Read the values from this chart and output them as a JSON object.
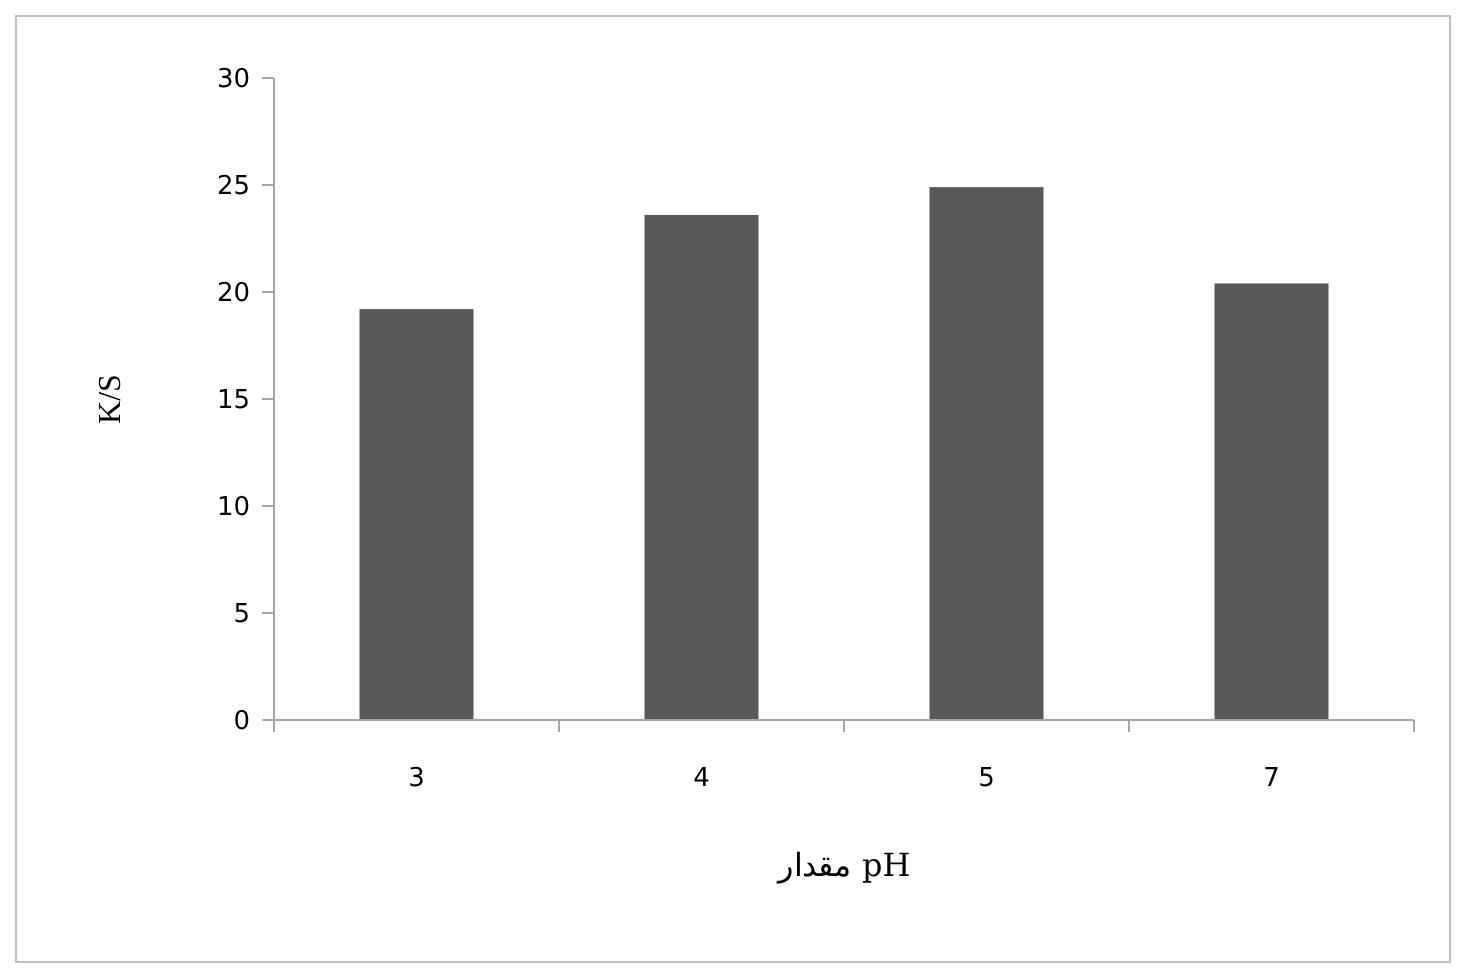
{
  "chart_data": {
    "type": "bar",
    "xlabel": "مقدار pH",
    "ylabel": "K/S",
    "categories": [
      "3",
      "4",
      "5",
      "7"
    ],
    "values": [
      19.2,
      23.6,
      24.9,
      20.4
    ],
    "color": "#595959",
    "ylim": [
      0,
      30
    ],
    "yticks": [
      0,
      5,
      10,
      15,
      20,
      25,
      30
    ],
    "grid": false
  }
}
